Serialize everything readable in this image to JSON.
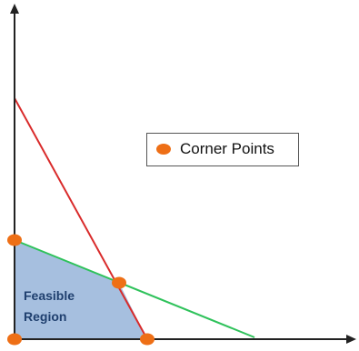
{
  "legend": {
    "label": "Corner Points"
  },
  "region": {
    "line1": "Feasible",
    "line2": "Region"
  },
  "colors": {
    "axes": "#222222",
    "constraint_1": "#d92b2b",
    "constraint_2": "#2fc25b",
    "feasible_fill": "#a6bfdf",
    "corner_point": "#ee6f16"
  },
  "corner_points": [
    {
      "name": "origin"
    },
    {
      "name": "y-intercept"
    },
    {
      "name": "intersection"
    },
    {
      "name": "x-intercept"
    }
  ]
}
